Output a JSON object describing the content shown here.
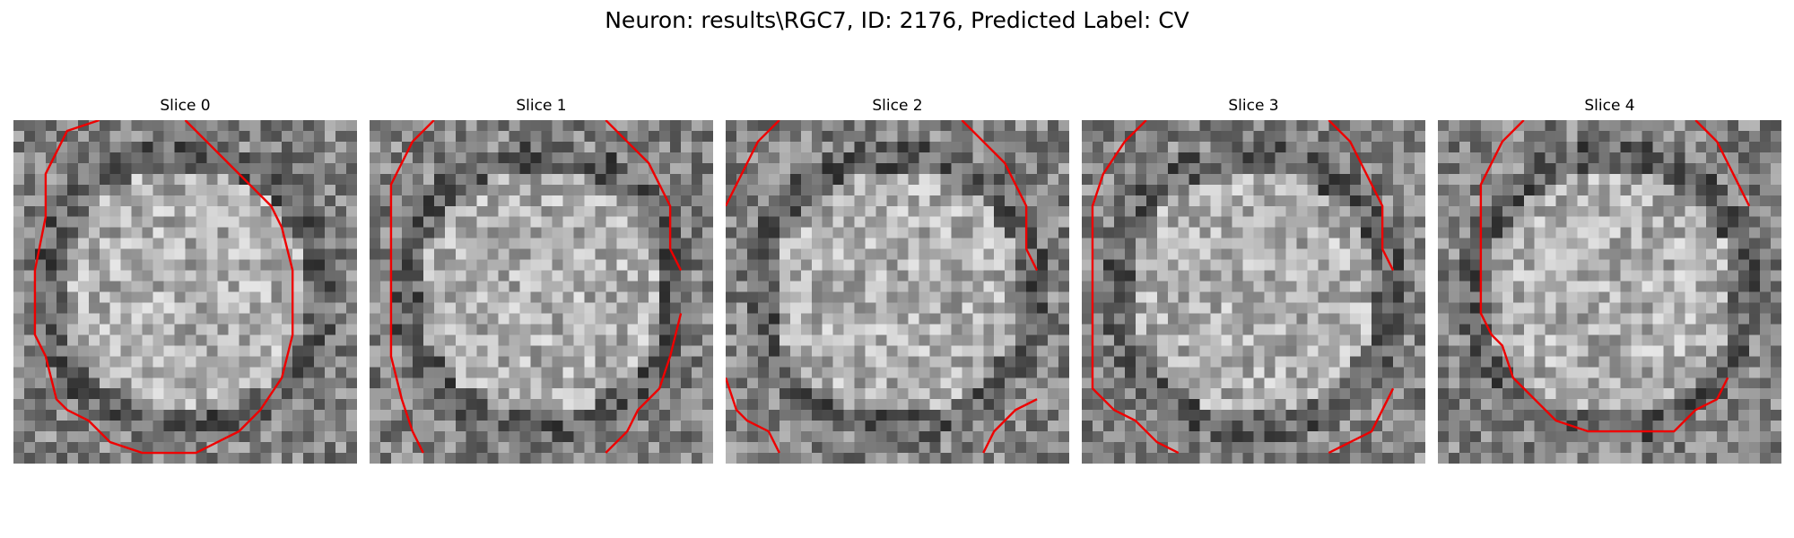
{
  "figure": {
    "title": "Neuron: results\\RGC7, ID: 2176, Predicted Label: CV"
  },
  "slices": [
    {
      "title": "Slice 0",
      "seed": 11,
      "contour": [
        [
          8,
          0
        ],
        [
          5,
          1
        ],
        [
          4,
          3
        ],
        [
          3,
          5
        ],
        [
          3,
          9
        ],
        [
          2,
          14
        ],
        [
          2,
          20
        ],
        [
          3,
          22
        ],
        [
          4,
          26
        ],
        [
          5,
          27
        ],
        [
          7,
          28
        ],
        [
          9,
          30
        ],
        [
          12,
          31
        ],
        [
          17,
          31
        ],
        [
          19,
          30
        ],
        [
          21,
          29
        ],
        [
          23,
          27
        ],
        [
          25,
          24
        ],
        [
          26,
          20
        ],
        [
          26,
          14
        ],
        [
          25,
          10
        ],
        [
          24,
          8
        ],
        [
          22,
          6
        ],
        [
          20,
          4
        ],
        [
          18,
          2
        ],
        [
          16,
          0
        ]
      ]
    },
    {
      "title": "Slice 1",
      "seed": 23,
      "contour": [
        [
          6,
          0
        ],
        [
          4,
          2
        ],
        [
          3,
          4
        ],
        [
          2,
          6
        ],
        [
          2,
          10
        ],
        [
          2,
          16
        ],
        [
          2,
          22
        ],
        [
          3,
          26
        ],
        [
          4,
          29
        ],
        [
          5,
          31
        ]
      ],
      "contour2": [
        [
          22,
          0
        ],
        [
          24,
          2
        ],
        [
          26,
          4
        ],
        [
          27,
          6
        ],
        [
          28,
          8
        ],
        [
          28,
          12
        ],
        [
          29,
          14
        ]
      ],
      "contour3": [
        [
          29,
          18
        ],
        [
          28,
          22
        ],
        [
          27,
          25
        ],
        [
          25,
          27
        ],
        [
          24,
          29
        ],
        [
          22,
          31
        ]
      ]
    },
    {
      "title": "Slice 2",
      "seed": 37,
      "contour": [
        [
          5,
          0
        ],
        [
          3,
          2
        ],
        [
          2,
          4
        ],
        [
          1,
          6
        ],
        [
          0,
          8
        ]
      ],
      "contour2": [
        [
          22,
          0
        ],
        [
          24,
          2
        ],
        [
          26,
          4
        ],
        [
          27,
          6
        ],
        [
          28,
          8
        ],
        [
          28,
          12
        ],
        [
          29,
          14
        ]
      ],
      "contour3": [
        [
          0,
          24
        ],
        [
          1,
          27
        ],
        [
          2,
          28
        ],
        [
          4,
          29
        ],
        [
          5,
          31
        ]
      ],
      "contour4": [
        [
          29,
          26
        ],
        [
          27,
          27
        ],
        [
          26,
          28
        ],
        [
          25,
          29
        ],
        [
          24,
          31
        ]
      ]
    },
    {
      "title": "Slice 3",
      "seed": 53,
      "contour": [
        [
          6,
          0
        ],
        [
          4,
          2
        ],
        [
          2,
          5
        ],
        [
          1,
          8
        ],
        [
          1,
          14
        ],
        [
          1,
          20
        ],
        [
          1,
          25
        ],
        [
          3,
          27
        ],
        [
          5,
          28
        ],
        [
          7,
          30
        ],
        [
          9,
          31
        ]
      ],
      "contour2": [
        [
          23,
          0
        ],
        [
          25,
          2
        ],
        [
          26,
          4
        ],
        [
          27,
          6
        ],
        [
          28,
          8
        ],
        [
          28,
          12
        ],
        [
          29,
          14
        ]
      ],
      "contour3": [
        [
          29,
          25
        ],
        [
          28,
          27
        ],
        [
          27,
          29
        ],
        [
          25,
          30
        ],
        [
          23,
          31
        ]
      ]
    },
    {
      "title": "Slice 4",
      "seed": 71,
      "contour": [
        [
          8,
          0
        ],
        [
          6,
          2
        ],
        [
          5,
          4
        ],
        [
          4,
          6
        ],
        [
          4,
          10
        ],
        [
          4,
          14
        ],
        [
          4,
          18
        ],
        [
          5,
          20
        ],
        [
          6,
          21
        ],
        [
          7,
          24
        ],
        [
          9,
          26
        ],
        [
          11,
          28
        ],
        [
          14,
          29
        ],
        [
          18,
          29
        ],
        [
          22,
          29
        ],
        [
          24,
          27
        ],
        [
          26,
          26
        ],
        [
          27,
          24
        ]
      ],
      "contour2": [
        [
          24,
          0
        ],
        [
          26,
          2
        ],
        [
          27,
          4
        ],
        [
          28,
          6
        ],
        [
          29,
          8
        ]
      ]
    }
  ]
}
